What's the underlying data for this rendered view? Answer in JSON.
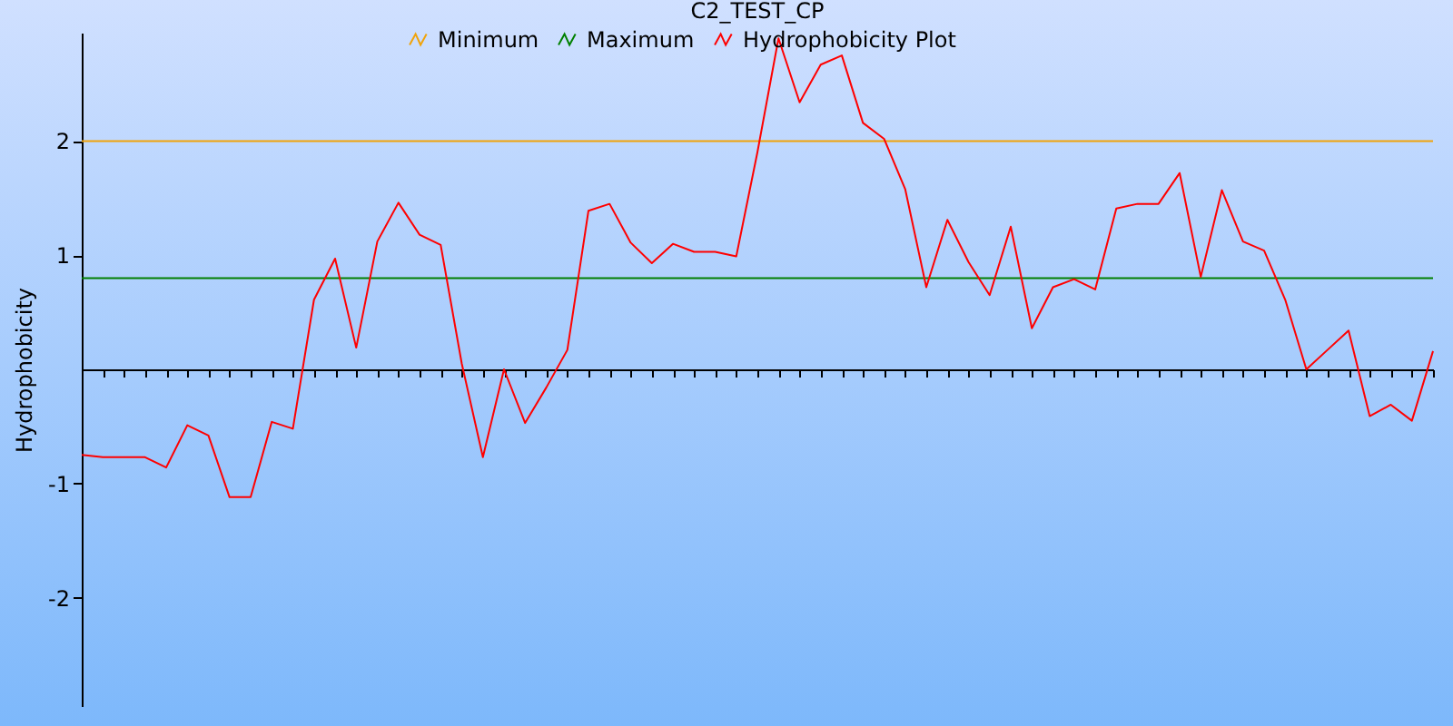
{
  "chart_data": {
    "type": "line",
    "title": "C2_TEST_CP",
    "ylabel": "Hydrophobicity",
    "categories": [
      null,
      null,
      null,
      null,
      null,
      null,
      null,
      null,
      null,
      null,
      null,
      null,
      null,
      null,
      null,
      null,
      null,
      null,
      null,
      null,
      null,
      null,
      null,
      null,
      null,
      null,
      null,
      null,
      null,
      null,
      null,
      null,
      null,
      null,
      null,
      null,
      null,
      null,
      null,
      null,
      null,
      null,
      null,
      null,
      null,
      null,
      null,
      null,
      null,
      null,
      null,
      null,
      null,
      null,
      null,
      null,
      null,
      null,
      null,
      null,
      null,
      null,
      null,
      null,
      null
    ],
    "series": [
      {
        "name": "Minimum",
        "color": "#f0a30a",
        "values": [
          2,
          2,
          2,
          2,
          2,
          2,
          2,
          2,
          2,
          2,
          2,
          2,
          2,
          2,
          2,
          2,
          2,
          2,
          2,
          2,
          2,
          2,
          2,
          2,
          2,
          2,
          2,
          2,
          2,
          2,
          2,
          2,
          2,
          2,
          2,
          2,
          2,
          2,
          2,
          2,
          2,
          2,
          2,
          2,
          2,
          2,
          2,
          2,
          2,
          2,
          2,
          2,
          2,
          2,
          2,
          2,
          2,
          2,
          2,
          2,
          2,
          2,
          2,
          2,
          2
        ]
      },
      {
        "name": "Maximum",
        "color": "#008000",
        "values": [
          0.8,
          0.8,
          0.8,
          0.8,
          0.8,
          0.8,
          0.8,
          0.8,
          0.8,
          0.8,
          0.8,
          0.8,
          0.8,
          0.8,
          0.8,
          0.8,
          0.8,
          0.8,
          0.8,
          0.8,
          0.8,
          0.8,
          0.8,
          0.8,
          0.8,
          0.8,
          0.8,
          0.8,
          0.8,
          0.8,
          0.8,
          0.8,
          0.8,
          0.8,
          0.8,
          0.8,
          0.8,
          0.8,
          0.8,
          0.8,
          0.8,
          0.8,
          0.8,
          0.8,
          0.8,
          0.8,
          0.8,
          0.8,
          0.8,
          0.8,
          0.8,
          0.8,
          0.8,
          0.8,
          0.8,
          0.8,
          0.8,
          0.8,
          0.8,
          0.8,
          0.8,
          0.8,
          0.8,
          0.8,
          0.8
        ]
      },
      {
        "name": "Hydrophobicity Plot",
        "color": "#ff0000",
        "values": [
          -0.75,
          -0.77,
          -0.77,
          -0.77,
          -0.86,
          -0.49,
          -0.58,
          -1.12,
          -1.12,
          -0.46,
          -0.52,
          0.61,
          0.97,
          0.19,
          1.12,
          1.46,
          1.18,
          1.09,
          0.05,
          -0.77,
          0.0,
          -0.47,
          -0.16,
          0.17,
          1.39,
          1.45,
          1.11,
          0.93,
          1.1,
          1.03,
          1.03,
          0.99,
          1.9,
          2.9,
          2.34,
          2.67,
          2.75,
          2.16,
          2.02,
          1.58,
          0.72,
          1.31,
          0.94,
          0.65,
          1.25,
          0.36,
          0.72,
          0.79,
          0.7,
          1.41,
          1.45,
          1.45,
          1.72,
          0.81,
          1.57,
          1.12,
          1.04,
          0.61,
          0.0,
          0.17,
          0.34,
          -0.41,
          -0.31,
          -0.45,
          0.16
        ]
      }
    ],
    "ylim": [
      -2.95,
      2.95
    ],
    "yticks": [
      -2,
      -1,
      1,
      2
    ],
    "tick_labels": "y",
    "legend": "top",
    "marker": "none",
    "line_style": "solid",
    "grid": false
  }
}
